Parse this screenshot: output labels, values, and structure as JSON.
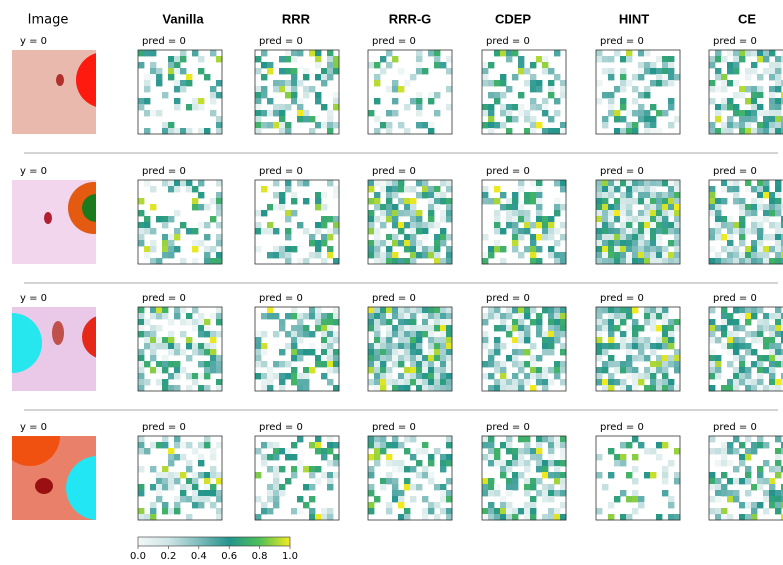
{
  "headers": [
    "Image",
    "Vanilla",
    "RRR",
    "RRR-G",
    "CDEP",
    "HINT",
    "CE"
  ],
  "rows": [
    {
      "label": "y = 0",
      "preds": [
        "pred = 0",
        "pred = 0",
        "pred = 0",
        "pred = 0",
        "pred = 0",
        "pred = 0"
      ]
    },
    {
      "label": "y = 0",
      "preds": [
        "pred = 0",
        "pred = 0",
        "pred = 0",
        "pred = 0",
        "pred = 0",
        "pred = 0"
      ]
    },
    {
      "label": "y = 0",
      "preds": [
        "pred = 0",
        "pred = 0",
        "pred = 0",
        "pred = 0",
        "pred = 0",
        "pred = 0"
      ]
    },
    {
      "label": "y = 0",
      "preds": [
        "pred = 0",
        "pred = 0",
        "pred = 0",
        "pred = 0",
        "pred = 0",
        "pred = 0"
      ]
    }
  ],
  "colorbar": {
    "lim": [
      {
        "value": 0,
        "label": "0.0"
      },
      {
        "value": 1,
        "label": "1.0"
      }
    ],
    "ticks": [
      {
        "value": 0,
        "label": "0.0"
      },
      0.2,
      0.4,
      0.6,
      0.8,
      {
        "value": 1,
        "label": "1.0"
      }
    ]
  }
}
